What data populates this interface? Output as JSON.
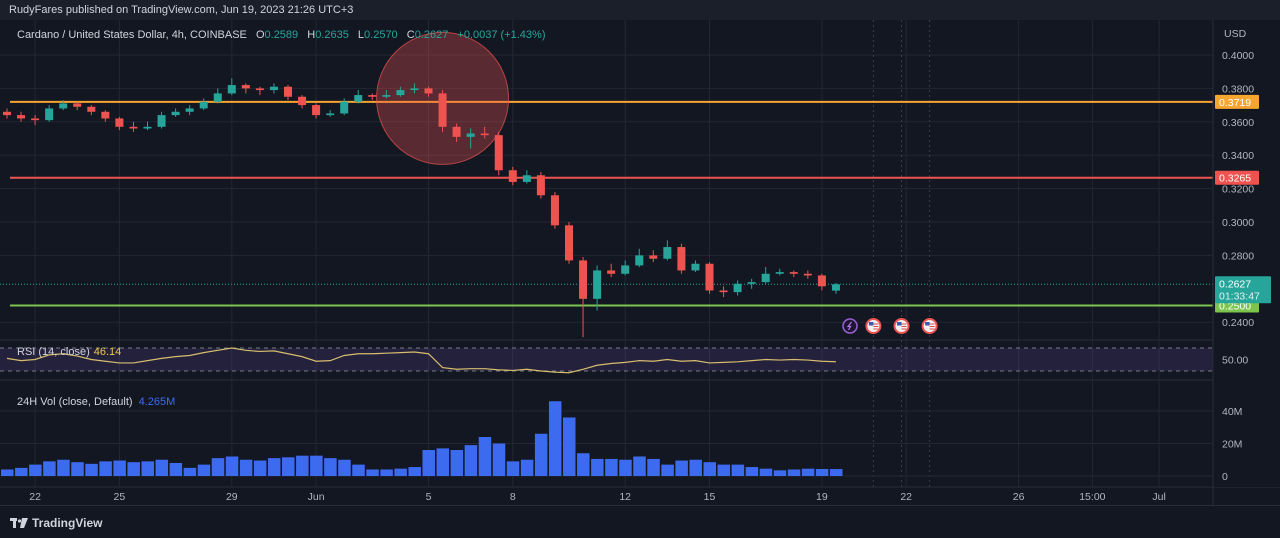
{
  "header": {
    "published": "RudyFares published on TradingView.com, Jun 19, 2023 21:26 UTC+3"
  },
  "legend": {
    "symbol": "Cardano / United States Dollar, 4h, COINBASE",
    "open_label": "O",
    "open": "0.2589",
    "high_label": "H",
    "high": "0.2635",
    "low_label": "L",
    "low": "0.2570",
    "close_label": "C",
    "close": "0.2627",
    "change": "+0.0037 (+1.43%)"
  },
  "rsi": {
    "label": "RSI (14, close)",
    "value": "46.14"
  },
  "volume": {
    "label": "24H Vol (close, Default)",
    "value": "4.265M"
  },
  "footer": {
    "brand": "TradingView"
  },
  "colors": {
    "background": "#131722",
    "up": "#26a69a",
    "down": "#ef5350",
    "resistance_orange": "#f7a531",
    "resistance_red": "#ef5350",
    "support_green": "#7cc44e",
    "volume": "#3d6bf0",
    "rsi_line": "#d8bd6f",
    "rsi_band": "#7e57c2"
  },
  "chart_data": [
    {
      "type": "candlestick",
      "first_candle": "2023-05-21 00:00",
      "price_axis": {
        "unit": "USD",
        "ylim": [
          0.228,
          0.408
        ],
        "ticks": [
          "0.4000",
          "0.3800",
          "0.3600",
          "0.3400",
          "0.3200",
          "0.3000",
          "0.2800",
          "0.2400"
        ]
      },
      "x_ticks": [
        {
          "label": "22",
          "date": "2023-05-22"
        },
        {
          "label": "25",
          "date": "2023-05-25"
        },
        {
          "label": "29",
          "date": "2023-05-29"
        },
        {
          "label": "Jun",
          "date": "2023-06-01"
        },
        {
          "label": "5",
          "date": "2023-06-05"
        },
        {
          "label": "8",
          "date": "2023-06-08"
        },
        {
          "label": "12",
          "date": "2023-06-12"
        },
        {
          "label": "15",
          "date": "2023-06-15"
        },
        {
          "label": "19",
          "date": "2023-06-19"
        },
        {
          "label": "22",
          "date": "2023-06-22"
        },
        {
          "label": "26",
          "date": "2023-06-26"
        },
        {
          "label": "15:00",
          "date": "2023-06-28 15:00"
        },
        {
          "label": "Jul",
          "date": "2023-07-01"
        }
      ],
      "ohlc": [
        [
          0.366,
          0.368,
          0.362,
          0.364
        ],
        [
          0.364,
          0.366,
          0.36,
          0.362
        ],
        [
          0.362,
          0.364,
          0.358,
          0.361
        ],
        [
          0.361,
          0.37,
          0.36,
          0.368
        ],
        [
          0.368,
          0.373,
          0.367,
          0.371
        ],
        [
          0.371,
          0.372,
          0.367,
          0.369
        ],
        [
          0.369,
          0.37,
          0.364,
          0.366
        ],
        [
          0.366,
          0.367,
          0.36,
          0.362
        ],
        [
          0.362,
          0.363,
          0.355,
          0.357
        ],
        [
          0.357,
          0.36,
          0.354,
          0.356
        ],
        [
          0.356,
          0.36,
          0.355,
          0.357
        ],
        [
          0.357,
          0.366,
          0.356,
          0.364
        ],
        [
          0.364,
          0.368,
          0.363,
          0.366
        ],
        [
          0.366,
          0.37,
          0.364,
          0.368
        ],
        [
          0.368,
          0.374,
          0.367,
          0.372
        ],
        [
          0.372,
          0.38,
          0.371,
          0.377
        ],
        [
          0.377,
          0.386,
          0.376,
          0.382
        ],
        [
          0.382,
          0.383,
          0.377,
          0.38
        ],
        [
          0.38,
          0.381,
          0.376,
          0.379
        ],
        [
          0.379,
          0.383,
          0.377,
          0.381
        ],
        [
          0.381,
          0.382,
          0.373,
          0.375
        ],
        [
          0.375,
          0.376,
          0.368,
          0.37
        ],
        [
          0.37,
          0.371,
          0.362,
          0.364
        ],
        [
          0.364,
          0.367,
          0.363,
          0.365
        ],
        [
          0.365,
          0.374,
          0.364,
          0.372
        ],
        [
          0.372,
          0.379,
          0.371,
          0.376
        ],
        [
          0.376,
          0.377,
          0.373,
          0.375
        ],
        [
          0.375,
          0.379,
          0.374,
          0.376
        ],
        [
          0.376,
          0.381,
          0.375,
          0.379
        ],
        [
          0.379,
          0.383,
          0.377,
          0.38
        ],
        [
          0.38,
          0.381,
          0.375,
          0.377
        ],
        [
          0.377,
          0.379,
          0.354,
          0.357
        ],
        [
          0.357,
          0.359,
          0.348,
          0.351
        ],
        [
          0.351,
          0.356,
          0.344,
          0.353
        ],
        [
          0.353,
          0.357,
          0.35,
          0.352
        ],
        [
          0.352,
          0.354,
          0.328,
          0.331
        ],
        [
          0.331,
          0.333,
          0.322,
          0.324
        ],
        [
          0.324,
          0.331,
          0.323,
          0.328
        ],
        [
          0.328,
          0.33,
          0.314,
          0.316
        ],
        [
          0.316,
          0.318,
          0.296,
          0.298
        ],
        [
          0.298,
          0.3,
          0.275,
          0.277
        ],
        [
          0.277,
          0.279,
          0.231,
          0.254
        ],
        [
          0.254,
          0.274,
          0.247,
          0.271
        ],
        [
          0.271,
          0.275,
          0.267,
          0.269
        ],
        [
          0.269,
          0.277,
          0.268,
          0.274
        ],
        [
          0.274,
          0.284,
          0.273,
          0.28
        ],
        [
          0.28,
          0.283,
          0.276,
          0.278
        ],
        [
          0.278,
          0.289,
          0.277,
          0.285
        ],
        [
          0.285,
          0.287,
          0.269,
          0.271
        ],
        [
          0.271,
          0.277,
          0.27,
          0.275
        ],
        [
          0.275,
          0.276,
          0.257,
          0.259
        ],
        [
          0.259,
          0.2615,
          0.255,
          0.258
        ],
        [
          0.258,
          0.265,
          0.256,
          0.263
        ],
        [
          0.263,
          0.266,
          0.26,
          0.264
        ],
        [
          0.264,
          0.273,
          0.263,
          0.269
        ],
        [
          0.269,
          0.272,
          0.268,
          0.27
        ],
        [
          0.27,
          0.271,
          0.267,
          0.269
        ],
        [
          0.269,
          0.271,
          0.266,
          0.268
        ],
        [
          0.268,
          0.269,
          0.259,
          0.2615
        ],
        [
          0.2589,
          0.2635,
          0.257,
          0.2627
        ]
      ],
      "horizontal_lines": [
        {
          "price": 0.3719,
          "label": "0.3719",
          "color": "#f7a531"
        },
        {
          "price": 0.3265,
          "label": "0.3265",
          "color": "#ef5350"
        },
        {
          "price": 0.25,
          "label": "0.2500",
          "color": "#7cc44e"
        }
      ],
      "last_price": {
        "price": 0.2627,
        "label": "0.2627",
        "countdown": "01:33:47",
        "color": "#26a69a"
      },
      "highlight_circle": {
        "center_date": "2023-06-05 12:00",
        "center_price": 0.374,
        "color": "#ef5350"
      },
      "event_markers": [
        {
          "icon": "lightning-icon",
          "date": "2023-06-20"
        },
        {
          "icon": "us-flag-icon",
          "date": "2023-06-20 20:00"
        },
        {
          "icon": "us-flag-icon",
          "date": "2023-06-21 20:00"
        },
        {
          "icon": "us-flag-icon",
          "date": "2023-06-22 20:00"
        }
      ]
    },
    {
      "type": "line",
      "name": "RSI (14, close)",
      "ylim": [
        0,
        100
      ],
      "bands": [
        30,
        70
      ],
      "ticks": [
        "50.00"
      ],
      "values": [
        52,
        48,
        50,
        58,
        60,
        56,
        50,
        47,
        44,
        44,
        48,
        52,
        55,
        57,
        62,
        66,
        70,
        66,
        64,
        65,
        60,
        55,
        47,
        48,
        57,
        60,
        60,
        61,
        62,
        63,
        60,
        36,
        33,
        34,
        34,
        32,
        31,
        33,
        30,
        28,
        27,
        33,
        40,
        43,
        45,
        48,
        47,
        50,
        47,
        48,
        44,
        45,
        46,
        48,
        50,
        49,
        50,
        49,
        47,
        46.14
      ]
    },
    {
      "type": "bar",
      "name": "24H Vol (close, Default)",
      "unit": "M",
      "ylim": [
        0,
        48
      ],
      "ticks": [
        "40M",
        "20M",
        "0"
      ],
      "values": [
        4,
        5,
        7,
        9,
        10,
        8.5,
        7.5,
        9,
        9.5,
        8.5,
        9,
        10,
        8,
        5,
        7,
        11,
        12,
        10,
        9.5,
        11,
        11.5,
        12.5,
        12.5,
        11,
        10,
        7,
        4,
        4,
        4.5,
        5.5,
        16,
        17,
        16,
        19,
        24,
        20,
        9,
        10,
        26,
        46,
        36,
        14,
        10.5,
        10.5,
        10,
        12,
        10.5,
        7,
        9.5,
        10,
        8.5,
        7,
        7,
        5.5,
        4.5,
        3.5,
        4,
        4.5,
        4.3,
        4.265
      ]
    }
  ]
}
